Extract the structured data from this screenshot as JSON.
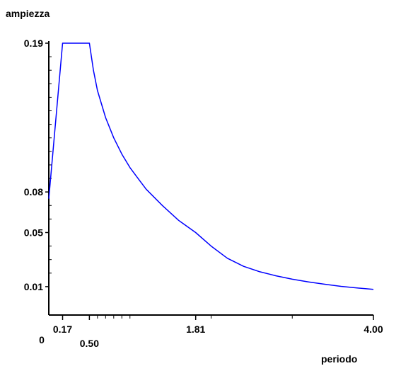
{
  "chart_data": {
    "type": "line",
    "title": "",
    "xlabel": "periodo",
    "ylabel": "ampiezza",
    "xlim": [
      0,
      4.0
    ],
    "ylim": [
      0,
      0.19
    ],
    "x_tick_labels": [
      {
        "value": 0,
        "label": "0"
      },
      {
        "value": 0.17,
        "label": "0.17"
      },
      {
        "value": 0.5,
        "label": "0.50"
      },
      {
        "value": 1.81,
        "label": "1.81"
      },
      {
        "value": 4.0,
        "label": "4.00"
      }
    ],
    "y_tick_labels": [
      {
        "value": 0.19,
        "label": "0.19"
      },
      {
        "value": 0.08,
        "label": "0.08"
      },
      {
        "value": 0.05,
        "label": "0.05"
      },
      {
        "value": 0.01,
        "label": "0.01"
      }
    ],
    "x_minor_ticks": [
      0.6,
      0.7,
      0.8,
      0.9,
      1.0,
      2.0,
      3.0
    ],
    "y_minor_ticks": [
      0.02,
      0.03,
      0.04,
      0.06,
      0.07,
      0.09,
      0.1,
      0.11,
      0.12,
      0.13,
      0.14,
      0.15,
      0.16,
      0.17,
      0.18
    ],
    "grid": false,
    "series": [
      {
        "color": "#0000ff",
        "x": [
          0.0,
          0.17,
          0.5,
          0.55,
          0.6,
          0.7,
          0.8,
          0.9,
          1.0,
          1.1,
          1.2,
          1.4,
          1.6,
          1.81,
          2.0,
          2.2,
          2.4,
          2.6,
          2.8,
          3.0,
          3.2,
          3.4,
          3.6,
          3.8,
          4.0
        ],
        "y": [
          0.075,
          0.19,
          0.19,
          0.17,
          0.155,
          0.135,
          0.12,
          0.108,
          0.098,
          0.09,
          0.082,
          0.07,
          0.059,
          0.05,
          0.04,
          0.031,
          0.025,
          0.021,
          0.018,
          0.0155,
          0.0135,
          0.0118,
          0.0102,
          0.009,
          0.008
        ]
      }
    ]
  }
}
